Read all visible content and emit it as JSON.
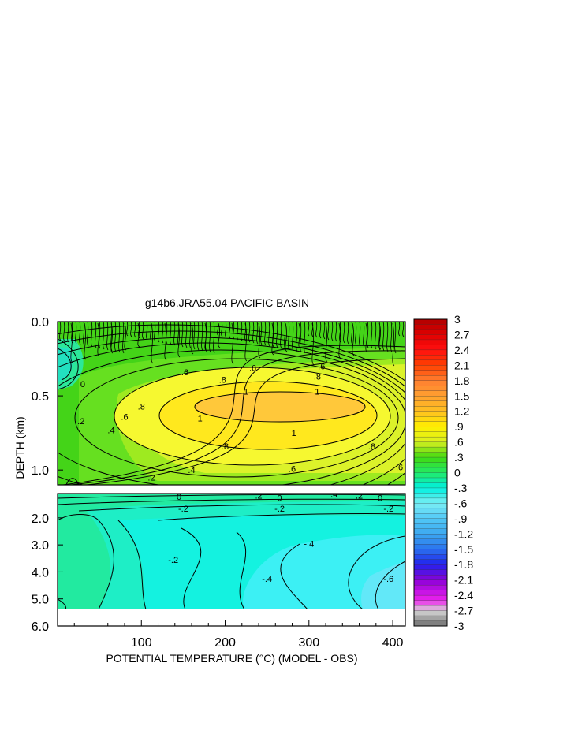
{
  "chart_data": {
    "type": "heatmap",
    "title": "g14b6.JRA55.04 PACIFIC BASIN",
    "xlabel": "POTENTIAL TEMPERATURE (°C) (MODEL - OBS)",
    "ylabel": "DEPTH (km)",
    "xlim": [
      0,
      415
    ],
    "x_ticks": [
      "100",
      "200",
      "300",
      "400"
    ],
    "upper_panel": {
      "ylim": [
        0.0,
        1.1
      ],
      "y_ticks": [
        "0.0",
        "0.5",
        "1.0"
      ]
    },
    "lower_panel": {
      "ylim": [
        1.1,
        6.0
      ],
      "y_ticks": [
        "2.0",
        "3.0",
        "4.0",
        "5.0",
        "6.0"
      ]
    },
    "colorbar": {
      "range": [
        -3,
        3
      ],
      "step": 0.1,
      "labels": [
        "3",
        "2.7",
        "2.4",
        "2.1",
        "1.8",
        "1.5",
        "1.2",
        ".9",
        ".6",
        ".3",
        "0",
        "-.3",
        "-.6",
        "-.9",
        "-1.2",
        "-1.5",
        "-1.8",
        "-2.1",
        "-2.4",
        "-2.7",
        "-3"
      ],
      "stops": [
        {
          "v": -3.0,
          "c": "#6e6e6e"
        },
        {
          "v": -2.7,
          "c": "#d8d8d8"
        },
        {
          "v": -2.5,
          "c": "#ee22ee"
        },
        {
          "v": -2.1,
          "c": "#8c00d8"
        },
        {
          "v": -1.8,
          "c": "#2222ee"
        },
        {
          "v": -1.5,
          "c": "#2a72ee"
        },
        {
          "v": -1.2,
          "c": "#3ca8f0"
        },
        {
          "v": -0.9,
          "c": "#52c8f6"
        },
        {
          "v": -0.6,
          "c": "#7aeef4"
        },
        {
          "v": -0.3,
          "c": "#00f0e0"
        },
        {
          "v": 0.0,
          "c": "#22ea66"
        },
        {
          "v": 0.3,
          "c": "#40da10"
        },
        {
          "v": 0.6,
          "c": "#d8f020"
        },
        {
          "v": 0.9,
          "c": "#fff000"
        },
        {
          "v": 1.2,
          "c": "#ffc020"
        },
        {
          "v": 1.5,
          "c": "#ffa030"
        },
        {
          "v": 1.8,
          "c": "#ff8030"
        },
        {
          "v": 2.1,
          "c": "#ff4000"
        },
        {
          "v": 2.4,
          "c": "#ff1010"
        },
        {
          "v": 2.7,
          "c": "#e00000"
        },
        {
          "v": 3.0,
          "c": "#b00000"
        }
      ]
    },
    "contour_labels": [
      {
        "text": "0",
        "x": 30,
        "depth": 0.42
      },
      {
        "text": ".2",
        "x": 28,
        "depth": 0.67
      },
      {
        "text": ".4",
        "x": 64,
        "depth": 0.73
      },
      {
        "text": ".6",
        "x": 80,
        "depth": 0.64
      },
      {
        "text": ".8",
        "x": 100,
        "depth": 0.57
      },
      {
        "text": ".6",
        "x": 152,
        "depth": 0.34
      },
      {
        "text": ".8",
        "x": 197,
        "depth": 0.39
      },
      {
        "text": ".6",
        "x": 233,
        "depth": 0.31
      },
      {
        "text": "1",
        "x": 225,
        "depth": 0.47
      },
      {
        "text": "1",
        "x": 170,
        "depth": 0.65
      },
      {
        "text": "1",
        "x": 282,
        "depth": 0.75
      },
      {
        "text": ".8",
        "x": 200,
        "depth": 0.84
      },
      {
        "text": ".6",
        "x": 280,
        "depth": 0.99
      },
      {
        "text": ".4",
        "x": 160,
        "depth": 1.0
      },
      {
        "text": ".2",
        "x": 112,
        "depth": 1.05
      },
      {
        "text": "1",
        "x": 310,
        "depth": 0.47
      },
      {
        "text": ".8",
        "x": 310,
        "depth": 0.37
      },
      {
        "text": ".6",
        "x": 315,
        "depth": 0.3
      },
      {
        "text": ".8",
        "x": 375,
        "depth": 0.84
      },
      {
        "text": ".6",
        "x": 408,
        "depth": 0.98
      },
      {
        "text": "0",
        "x": 145,
        "depth": 1.22
      },
      {
        "text": ".2",
        "x": 240,
        "depth": 1.17
      },
      {
        "text": "0",
        "x": 265,
        "depth": 1.26
      },
      {
        "text": ".4",
        "x": 330,
        "depth": 1.12
      },
      {
        "text": ".2",
        "x": 360,
        "depth": 1.17
      },
      {
        "text": "0",
        "x": 385,
        "depth": 1.26
      },
      {
        "text": "-.2",
        "x": 150,
        "depth": 1.65
      },
      {
        "text": "-.2",
        "x": 265,
        "depth": 1.65
      },
      {
        "text": "-.2",
        "x": 395,
        "depth": 1.65
      },
      {
        "text": "-.4",
        "x": 300,
        "depth": 2.95
      },
      {
        "text": "-.2",
        "x": 138,
        "depth": 3.55
      },
      {
        "text": "-.4",
        "x": 250,
        "depth": 4.25
      },
      {
        "text": "-.6",
        "x": 395,
        "depth": 4.25
      }
    ]
  }
}
